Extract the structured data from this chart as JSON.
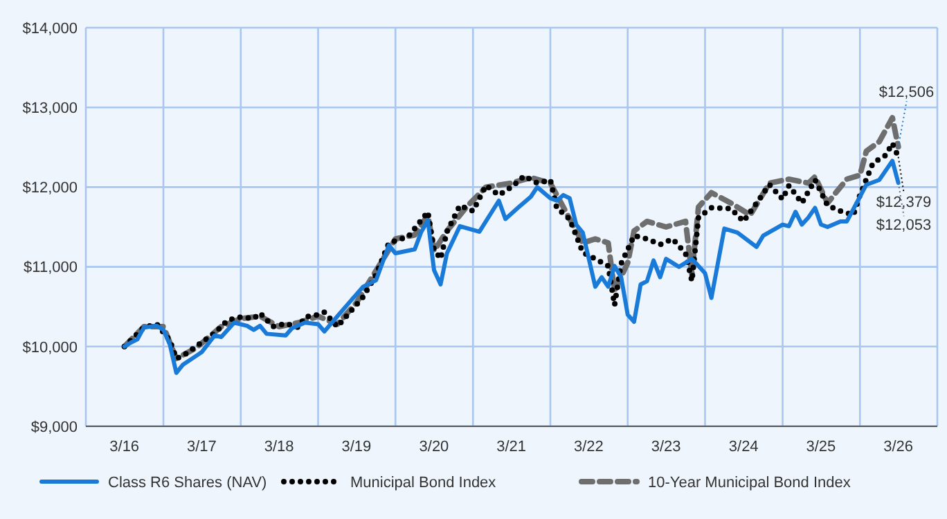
{
  "chart_data": {
    "type": "line",
    "ylim": [
      9000,
      14000
    ],
    "yticks": [
      {
        "value": 9000,
        "label": "$9,000"
      },
      {
        "value": 10000,
        "label": "$10,000"
      },
      {
        "value": 11000,
        "label": "$11,000"
      },
      {
        "value": 12000,
        "label": "$12,000"
      },
      {
        "value": 13000,
        "label": "$13,000"
      },
      {
        "value": 14000,
        "label": "$14,000"
      }
    ],
    "xlim": [
      "2015-09",
      "2026-09"
    ],
    "xticks": [
      {
        "value": "2015-09",
        "label": null
      },
      {
        "value": "2016-03",
        "label": "3/16"
      },
      {
        "value": "2016-09",
        "label": null
      },
      {
        "value": "2017-03",
        "label": "3/17"
      },
      {
        "value": "2017-09",
        "label": null
      },
      {
        "value": "2018-03",
        "label": "3/18"
      },
      {
        "value": "2018-09",
        "label": null
      },
      {
        "value": "2019-03",
        "label": "3/19"
      },
      {
        "value": "2019-09",
        "label": null
      },
      {
        "value": "2020-03",
        "label": "3/20"
      },
      {
        "value": "2020-09",
        "label": null
      },
      {
        "value": "2021-03",
        "label": "3/21"
      },
      {
        "value": "2021-09",
        "label": null
      },
      {
        "value": "2022-03",
        "label": "3/22"
      },
      {
        "value": "2022-09",
        "label": null
      },
      {
        "value": "2023-03",
        "label": "3/23"
      },
      {
        "value": "2023-09",
        "label": null
      },
      {
        "value": "2024-03",
        "label": "3/24"
      },
      {
        "value": "2024-09",
        "label": null
      },
      {
        "value": "2025-03",
        "label": "3/25"
      },
      {
        "value": "2025-09",
        "label": null
      },
      {
        "value": "2026-03",
        "label": "3/26"
      },
      {
        "value": "2026-09",
        "label": null
      }
    ],
    "grid": true,
    "legend": "bottom",
    "series": [
      {
        "name": "Class R6 Shares (NAV)",
        "color": "#1a7ad8",
        "line_style": "solid",
        "x": [
          "2016-03",
          "2016-04",
          "2016-05",
          "2016-06",
          "2016-08",
          "2016-09",
          "2016-10",
          "2016-11",
          "2016-12",
          "2017-02",
          "2017-03",
          "2017-05",
          "2017-06",
          "2017-08",
          "2017-10",
          "2017-11",
          "2017-12",
          "2018-01",
          "2018-04",
          "2018-05",
          "2018-07",
          "2018-09",
          "2018-10",
          "2018-12",
          "2019-02",
          "2019-04",
          "2019-06",
          "2019-08",
          "2019-09",
          "2019-12",
          "2020-01",
          "2020-02",
          "2020-03",
          "2020-04",
          "2020-05",
          "2020-07",
          "2020-10",
          "2021-01",
          "2021-02",
          "2021-04",
          "2021-06",
          "2021-07",
          "2021-09",
          "2021-10",
          "2021-11",
          "2021-12",
          "2022-01",
          "2022-02",
          "2022-04",
          "2022-05",
          "2022-06",
          "2022-07",
          "2022-08",
          "2022-09",
          "2022-10",
          "2022-11",
          "2022-12",
          "2023-01",
          "2023-02",
          "2023-03",
          "2023-05",
          "2023-07",
          "2023-09",
          "2023-10",
          "2023-12",
          "2024-02",
          "2024-05",
          "2024-06",
          "2024-09",
          "2024-10",
          "2024-11",
          "2024-12",
          "2025-01",
          "2025-02",
          "2025-03",
          "2025-04",
          "2025-06",
          "2025-07",
          "2025-09",
          "2025-10",
          "2025-12",
          "2026-02",
          "2026-03"
        ],
        "values": [
          10000,
          10050,
          10090,
          10240,
          10260,
          10210,
          10030,
          9670,
          9770,
          9880,
          9930,
          10140,
          10120,
          10300,
          10260,
          10210,
          10260,
          10160,
          10140,
          10230,
          10300,
          10280,
          10190,
          10380,
          10570,
          10750,
          10830,
          11270,
          11170,
          11220,
          11440,
          11580,
          10960,
          10780,
          11170,
          11510,
          11440,
          11830,
          11600,
          11740,
          11880,
          12000,
          11860,
          11830,
          11900,
          11860,
          11530,
          11430,
          10750,
          10870,
          10750,
          11010,
          10870,
          10400,
          10310,
          10780,
          10820,
          11080,
          10870,
          11100,
          11000,
          11100,
          10920,
          10610,
          11480,
          11430,
          11250,
          11390,
          11530,
          11510,
          11690,
          11530,
          11620,
          11740,
          11530,
          11500,
          11570,
          11570,
          11880,
          12030,
          12090,
          12330,
          12053
        ]
      },
      {
        "name": "Municipal Bond Index",
        "color": "#000000",
        "line_style": "dotted",
        "x": [
          "2016-03",
          "2016-06",
          "2016-08",
          "2016-10",
          "2016-11",
          "2016-12",
          "2017-02",
          "2017-05",
          "2017-07",
          "2017-09",
          "2017-11",
          "2017-12",
          "2018-02",
          "2018-04",
          "2018-06",
          "2018-07",
          "2018-09",
          "2018-10",
          "2018-12",
          "2019-02",
          "2019-04",
          "2019-06",
          "2019-08",
          "2019-11",
          "2020-02",
          "2020-03",
          "2020-04",
          "2020-05",
          "2020-07",
          "2020-09",
          "2020-11",
          "2021-01",
          "2021-03",
          "2021-05",
          "2021-07",
          "2021-09",
          "2021-10",
          "2021-12",
          "2022-02",
          "2022-04",
          "2022-06",
          "2022-07",
          "2022-08",
          "2022-10",
          "2022-12",
          "2023-02",
          "2023-04",
          "2023-06",
          "2023-07",
          "2023-08",
          "2023-10",
          "2024-01",
          "2024-03",
          "2024-05",
          "2024-07",
          "2024-09",
          "2024-10",
          "2024-12",
          "2025-02",
          "2025-04",
          "2025-06",
          "2025-08",
          "2025-09",
          "2025-11",
          "2026-01",
          "2026-02",
          "2026-03"
        ],
        "values": [
          10000,
          10240,
          10280,
          10080,
          9850,
          9880,
          10000,
          10170,
          10330,
          10370,
          10350,
          10420,
          10250,
          10290,
          10240,
          10370,
          10400,
          10430,
          10250,
          10440,
          10620,
          10900,
          11300,
          11380,
          11690,
          11220,
          11100,
          11440,
          11770,
          11700,
          12020,
          11900,
          12000,
          12140,
          12050,
          12090,
          11740,
          11600,
          11180,
          11100,
          11010,
          10520,
          11040,
          11390,
          11350,
          11280,
          11350,
          11170,
          10820,
          11620,
          11740,
          11730,
          11570,
          11800,
          12030,
          11850,
          12020,
          11800,
          12090,
          11770,
          11700,
          11650,
          11900,
          12300,
          12400,
          12550,
          12379
        ]
      },
      {
        "name": "10-Year Municipal Bond Index",
        "color": "#6e6e6e",
        "line_style": "dashed",
        "x": [
          "2016-03",
          "2016-06",
          "2016-09",
          "2016-11",
          "2017-02",
          "2017-06",
          "2017-09",
          "2017-12",
          "2018-03",
          "2018-06",
          "2018-09",
          "2018-12",
          "2019-03",
          "2019-06",
          "2019-09",
          "2019-12",
          "2020-02",
          "2020-03",
          "2020-05",
          "2020-08",
          "2020-11",
          "2021-03",
          "2021-06",
          "2021-09",
          "2021-11",
          "2022-02",
          "2022-04",
          "2022-06",
          "2022-07",
          "2022-09",
          "2022-10",
          "2022-12",
          "2023-03",
          "2023-06",
          "2023-07",
          "2023-08",
          "2023-10",
          "2024-01",
          "2024-04",
          "2024-07",
          "2024-10",
          "2025-01",
          "2025-02",
          "2025-04",
          "2025-07",
          "2025-09",
          "2025-10",
          "2025-12",
          "2026-02",
          "2026-03"
        ],
        "values": [
          10000,
          10250,
          10250,
          9850,
          9980,
          10250,
          10350,
          10380,
          10250,
          10300,
          10380,
          10280,
          10550,
          10950,
          11350,
          11400,
          11650,
          11200,
          11450,
          11750,
          12000,
          12050,
          12120,
          12050,
          11750,
          11300,
          11350,
          11300,
          10700,
          11050,
          11450,
          11570,
          11500,
          11570,
          10900,
          11750,
          11930,
          11800,
          11650,
          12050,
          12100,
          12050,
          12130,
          11800,
          12100,
          12150,
          12450,
          12570,
          12870,
          12506
        ]
      }
    ],
    "annotations": [
      {
        "text": "$12,506",
        "x": "2026-03",
        "y": 12506
      },
      {
        "text": "$12,379",
        "x": "2026-03",
        "y": 12379
      },
      {
        "text": "$12,053",
        "x": "2026-03",
        "y": 12053
      }
    ]
  }
}
